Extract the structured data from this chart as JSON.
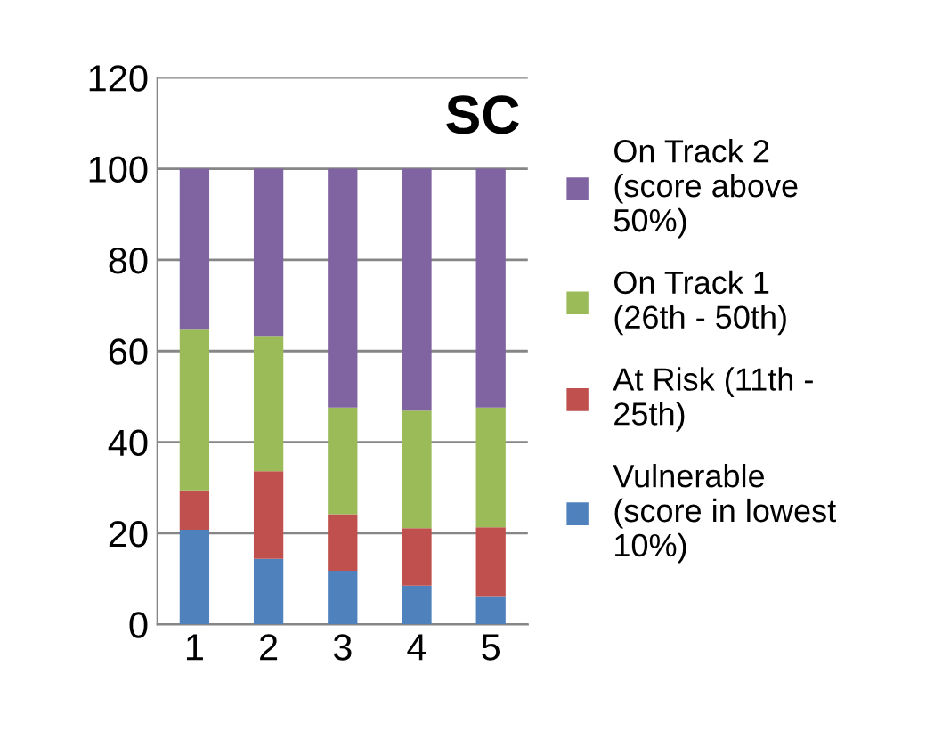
{
  "chart_data": {
    "type": "bar",
    "stacked": true,
    "title": "SC",
    "categories": [
      "1",
      "2",
      "3",
      "4",
      "5"
    ],
    "series": [
      {
        "name": "Vulnerable\n(score in lowest\n10%)",
        "color": "#4f81bd",
        "values": [
          20.8,
          14.4,
          11.8,
          8.5,
          6.2
        ]
      },
      {
        "name": "At Risk (11th -\n25th)",
        "color": "#c0504d",
        "values": [
          8.6,
          19.2,
          12.4,
          12.6,
          15.1
        ]
      },
      {
        "name": "On Track 1\n(26th - 50th)",
        "color": "#9bbb59",
        "values": [
          35.3,
          29.7,
          23.4,
          25.8,
          26.3
        ]
      },
      {
        "name": "On Track 2\n(score above\n50%)",
        "color": "#8064a2",
        "values": [
          35.3,
          36.7,
          52.4,
          53.1,
          52.4
        ]
      }
    ],
    "ylim": [
      0,
      120
    ],
    "yticks": [
      0,
      20,
      40,
      60,
      80,
      100,
      120
    ],
    "grid": "y",
    "legend": "right"
  }
}
